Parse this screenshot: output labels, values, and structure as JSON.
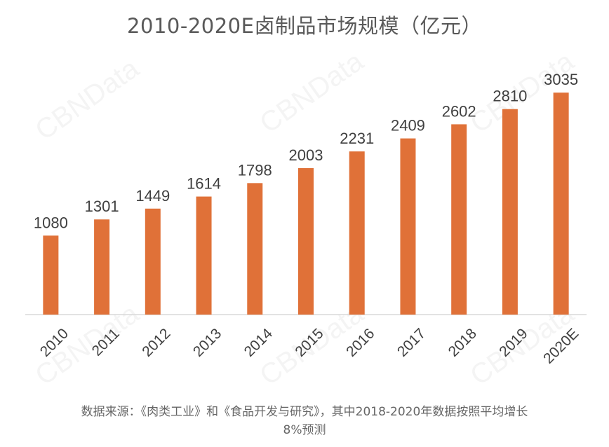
{
  "watermark": "CBNData",
  "chart_data": {
    "type": "bar",
    "title": "2010-2020E卤制品市场规模（亿元）",
    "categories": [
      "2010",
      "2011",
      "2012",
      "2013",
      "2014",
      "2015",
      "2016",
      "2017",
      "2018",
      "2019",
      "2020E"
    ],
    "values": [
      1080,
      1301,
      1449,
      1614,
      1798,
      2003,
      2231,
      2409,
      2602,
      2810,
      3035
    ],
    "ylim": [
      0,
      3200
    ],
    "grid": false,
    "legend": "none",
    "bar_color": "#E07138",
    "xlabel": "",
    "ylabel": ""
  },
  "source_note": {
    "line1": "数据来源：《肉类工业》和《食品开发与研究》，其中2018-2020年数据按照平均增长",
    "line2": "8%预测"
  }
}
